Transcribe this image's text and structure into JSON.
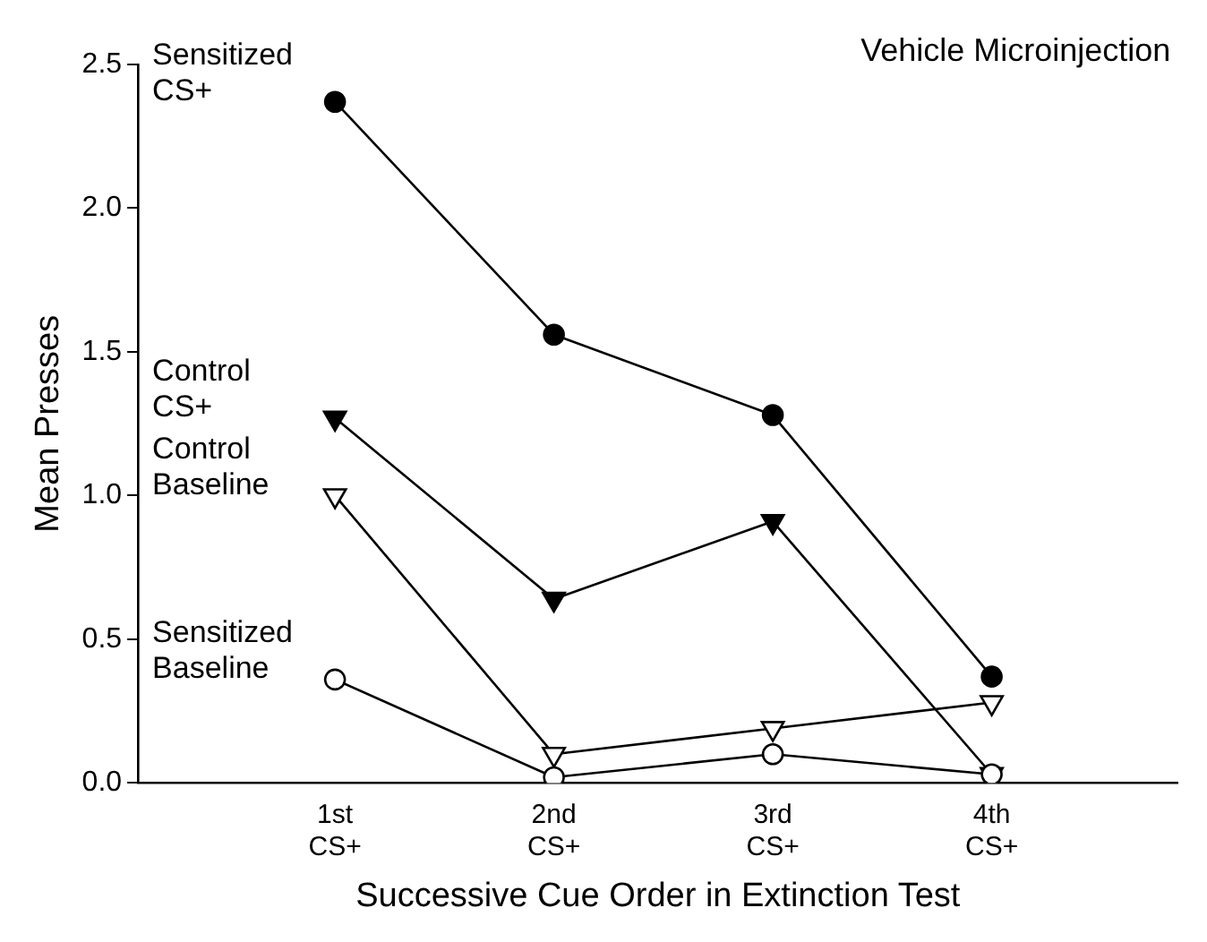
{
  "chart_data": {
    "type": "line",
    "title": "Vehicle Microinjection",
    "xlabel": "Successive Cue Order in Extinction Test",
    "ylabel": "Mean Presses",
    "categories": [
      "1st CS+",
      "2nd CS+",
      "3rd CS+",
      "4th CS+"
    ],
    "series": [
      {
        "name": "Sensitized CS+",
        "color": "#000000",
        "marker": "circle",
        "values": [
          2.37,
          1.56,
          1.28,
          0.37
        ]
      },
      {
        "name": "Control CS+",
        "color": "#000000",
        "marker": "triangle",
        "values": [
          1.27,
          0.64,
          0.91,
          0.03
        ]
      },
      {
        "name": "Control Baseline",
        "color": "#ffffff",
        "marker": "triangle",
        "values": [
          1.0,
          0.1,
          0.19,
          0.28
        ]
      },
      {
        "name": "Sensitized Baseline",
        "color": "#ffffff",
        "marker": "circle",
        "values": [
          0.36,
          0.02,
          0.1,
          0.03
        ]
      }
    ],
    "ylim": [
      0,
      2.5
    ],
    "yticks": [
      {
        "value": 0,
        "label": "0.0"
      },
      {
        "value": 0.5,
        "label": "0.5"
      },
      {
        "value": 1,
        "label": "1.0"
      },
      {
        "value": 1.5,
        "label": "1.5"
      },
      {
        "value": 2,
        "label": "2.0"
      },
      {
        "value": 2.5,
        "label": "2.5"
      }
    ],
    "grid": false,
    "legend": false,
    "line_style": "solid"
  }
}
